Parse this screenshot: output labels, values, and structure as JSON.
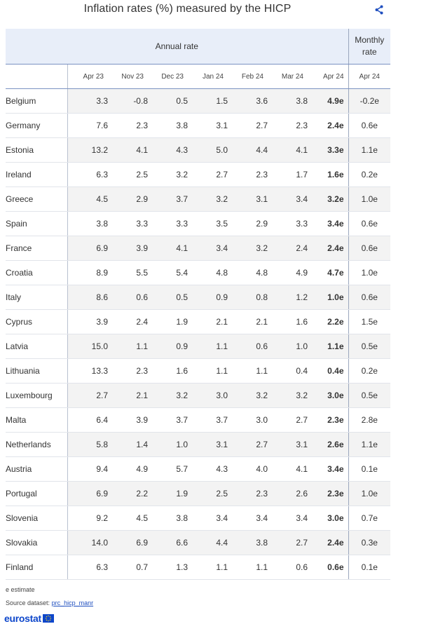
{
  "title": "Inflation rates (%) measured by the HICP",
  "icons": {
    "share": "share-icon"
  },
  "header": {
    "annual_label": "Annual rate",
    "monthly_label_line1": "Monthly",
    "monthly_label_line2": "rate",
    "columns": [
      "Apr 23",
      "Nov 23",
      "Dec 23",
      "Jan 24",
      "Feb 24",
      "Mar 24",
      "Apr 24",
      "Apr 24"
    ]
  },
  "rows": [
    {
      "country": "Belgium",
      "values": [
        "3.3",
        "-0.8",
        "0.5",
        "1.5",
        "3.6",
        "3.8",
        "4.9e",
        "-0.2e"
      ]
    },
    {
      "country": "Germany",
      "values": [
        "7.6",
        "2.3",
        "3.8",
        "3.1",
        "2.7",
        "2.3",
        "2.4e",
        "0.6e"
      ]
    },
    {
      "country": "Estonia",
      "values": [
        "13.2",
        "4.1",
        "4.3",
        "5.0",
        "4.4",
        "4.1",
        "3.3e",
        "1.1e"
      ]
    },
    {
      "country": "Ireland",
      "values": [
        "6.3",
        "2.5",
        "3.2",
        "2.7",
        "2.3",
        "1.7",
        "1.6e",
        "0.2e"
      ]
    },
    {
      "country": "Greece",
      "values": [
        "4.5",
        "2.9",
        "3.7",
        "3.2",
        "3.1",
        "3.4",
        "3.2e",
        "1.0e"
      ]
    },
    {
      "country": "Spain",
      "values": [
        "3.8",
        "3.3",
        "3.3",
        "3.5",
        "2.9",
        "3.3",
        "3.4e",
        "0.6e"
      ]
    },
    {
      "country": "France",
      "values": [
        "6.9",
        "3.9",
        "4.1",
        "3.4",
        "3.2",
        "2.4",
        "2.4e",
        "0.6e"
      ]
    },
    {
      "country": "Croatia",
      "values": [
        "8.9",
        "5.5",
        "5.4",
        "4.8",
        "4.8",
        "4.9",
        "4.7e",
        "1.0e"
      ]
    },
    {
      "country": "Italy",
      "values": [
        "8.6",
        "0.6",
        "0.5",
        "0.9",
        "0.8",
        "1.2",
        "1.0e",
        "0.6e"
      ]
    },
    {
      "country": "Cyprus",
      "values": [
        "3.9",
        "2.4",
        "1.9",
        "2.1",
        "2.1",
        "1.6",
        "2.2e",
        "1.5e"
      ]
    },
    {
      "country": "Latvia",
      "values": [
        "15.0",
        "1.1",
        "0.9",
        "1.1",
        "0.6",
        "1.0",
        "1.1e",
        "0.5e"
      ]
    },
    {
      "country": "Lithuania",
      "values": [
        "13.3",
        "2.3",
        "1.6",
        "1.1",
        "1.1",
        "0.4",
        "0.4e",
        "0.2e"
      ]
    },
    {
      "country": "Luxembourg",
      "values": [
        "2.7",
        "2.1",
        "3.2",
        "3.0",
        "3.2",
        "3.2",
        "3.0e",
        "0.5e"
      ]
    },
    {
      "country": "Malta",
      "values": [
        "6.4",
        "3.9",
        "3.7",
        "3.7",
        "3.0",
        "2.7",
        "2.3e",
        "2.8e"
      ]
    },
    {
      "country": "Netherlands",
      "values": [
        "5.8",
        "1.4",
        "1.0",
        "3.1",
        "2.7",
        "3.1",
        "2.6e",
        "1.1e"
      ]
    },
    {
      "country": "Austria",
      "values": [
        "9.4",
        "4.9",
        "5.7",
        "4.3",
        "4.0",
        "4.1",
        "3.4e",
        "0.1e"
      ]
    },
    {
      "country": "Portugal",
      "values": [
        "6.9",
        "2.2",
        "1.9",
        "2.5",
        "2.3",
        "2.6",
        "2.3e",
        "1.0e"
      ]
    },
    {
      "country": "Slovenia",
      "values": [
        "9.2",
        "4.5",
        "3.8",
        "3.4",
        "3.4",
        "3.4",
        "3.0e",
        "0.7e"
      ]
    },
    {
      "country": "Slovakia",
      "values": [
        "14.0",
        "6.9",
        "6.6",
        "4.4",
        "3.8",
        "2.7",
        "2.4e",
        "0.3e"
      ]
    },
    {
      "country": "Finland",
      "values": [
        "6.3",
        "0.7",
        "1.3",
        "1.1",
        "1.1",
        "0.6",
        "0.6e",
        "0.1e"
      ]
    }
  ],
  "footer": {
    "estimate_note": "e estimate",
    "source_label": "Source dataset:",
    "source_link": "prc_hicp_manr"
  },
  "logo": {
    "text": "eurostat",
    "brand_color": "#0e47cb"
  }
}
